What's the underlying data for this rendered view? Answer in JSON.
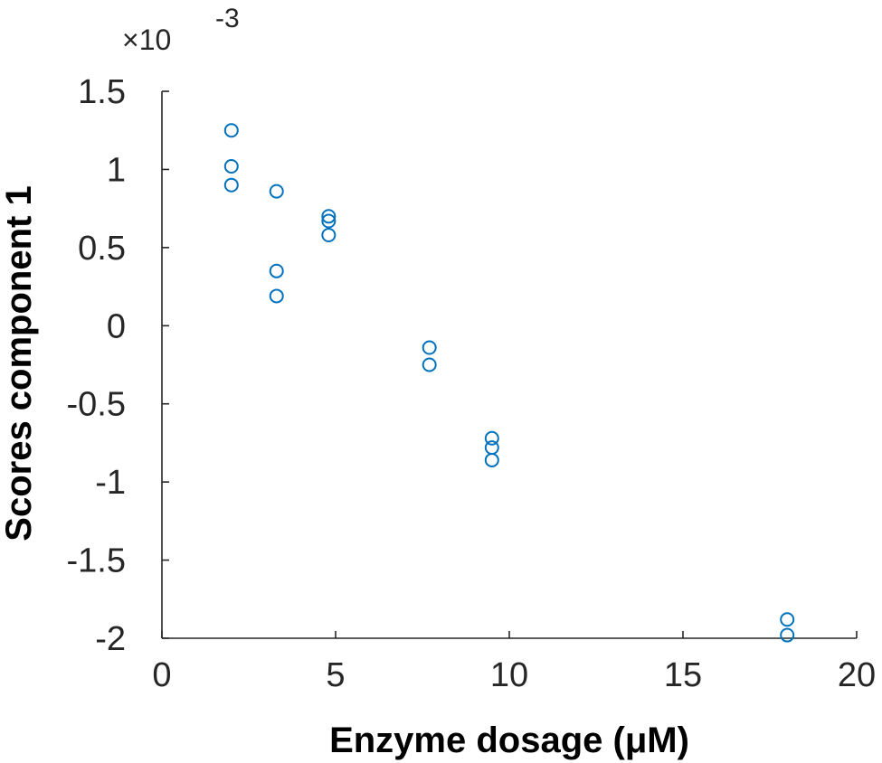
{
  "chart_data": {
    "type": "scatter",
    "title": "",
    "xlabel": "Enzyme dosage (μM)",
    "ylabel": "Scores component 1",
    "scale_multiplier": {
      "prefix": "×10",
      "exponent": "-3"
    },
    "xlim": [
      0,
      20
    ],
    "ylim": [
      -2,
      1.5
    ],
    "x_ticks": [
      0,
      5,
      10,
      15,
      20
    ],
    "x_tick_labels": [
      "0",
      "5",
      "10",
      "15",
      "20"
    ],
    "y_ticks": [
      -2,
      -1.5,
      -1,
      -0.5,
      0,
      0.5,
      1,
      1.5
    ],
    "y_tick_labels": [
      "-2",
      "-1.5",
      "-1",
      "-0.5",
      "0",
      "0.5",
      "1",
      "1.5"
    ],
    "grid": false,
    "colors": {
      "marker": "#0072BD",
      "axis": "#262626"
    },
    "marker": "open-circle",
    "series": [
      {
        "x": [
          2,
          2,
          2,
          3.3,
          3.3,
          3.3,
          4.8,
          4.8,
          4.8,
          7.7,
          7.7,
          9.5,
          9.5,
          9.5,
          18,
          18
        ],
        "y": [
          1.25,
          1.02,
          0.9,
          0.86,
          0.35,
          0.19,
          0.7,
          0.67,
          0.58,
          -0.14,
          -0.25,
          -0.72,
          -0.78,
          -0.86,
          -1.88,
          -1.98
        ]
      }
    ]
  }
}
